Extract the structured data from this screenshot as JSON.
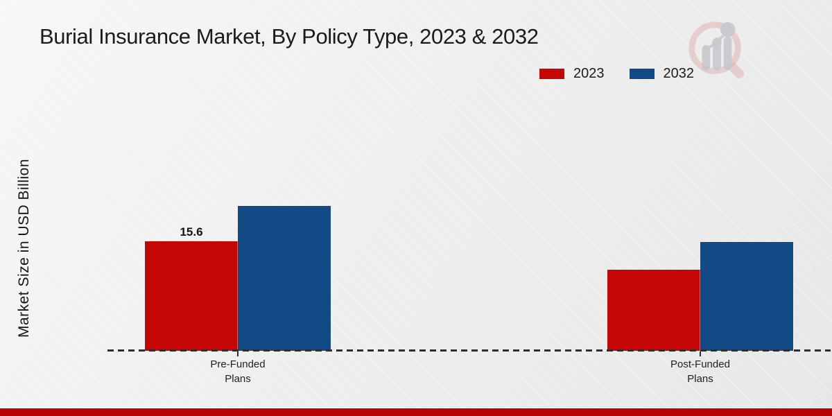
{
  "header": {
    "title": "Burial Insurance Market, By Policy Type, 2023 & 2032"
  },
  "legend": {
    "items": [
      {
        "label": "2023",
        "color": "#c40606"
      },
      {
        "label": "2032",
        "color": "#114a85"
      }
    ]
  },
  "chart_data": {
    "type": "bar",
    "title": "Burial Insurance Market, By Policy Type, 2023 & 2032",
    "xlabel": "",
    "ylabel": "Market Size in USD Billion",
    "categories": [
      "Pre-Funded Plans",
      "Post-Funded Plans"
    ],
    "series": [
      {
        "name": "2023",
        "color": "#c40606",
        "values": [
          15.6,
          11.6
        ]
      },
      {
        "name": "2032",
        "color": "#114a85",
        "values": [
          20.6,
          15.5
        ]
      }
    ],
    "data_labels": [
      {
        "series": "2023",
        "category": "Pre-Funded Plans",
        "text": "15.6"
      }
    ],
    "ylim": [
      0,
      22
    ],
    "grid": false,
    "legend_position": "top-right",
    "baseline_style": "dashed"
  },
  "watermark": {
    "icon": "magnifier-growth-chart"
  },
  "footer": {
    "color": "#b70404"
  }
}
